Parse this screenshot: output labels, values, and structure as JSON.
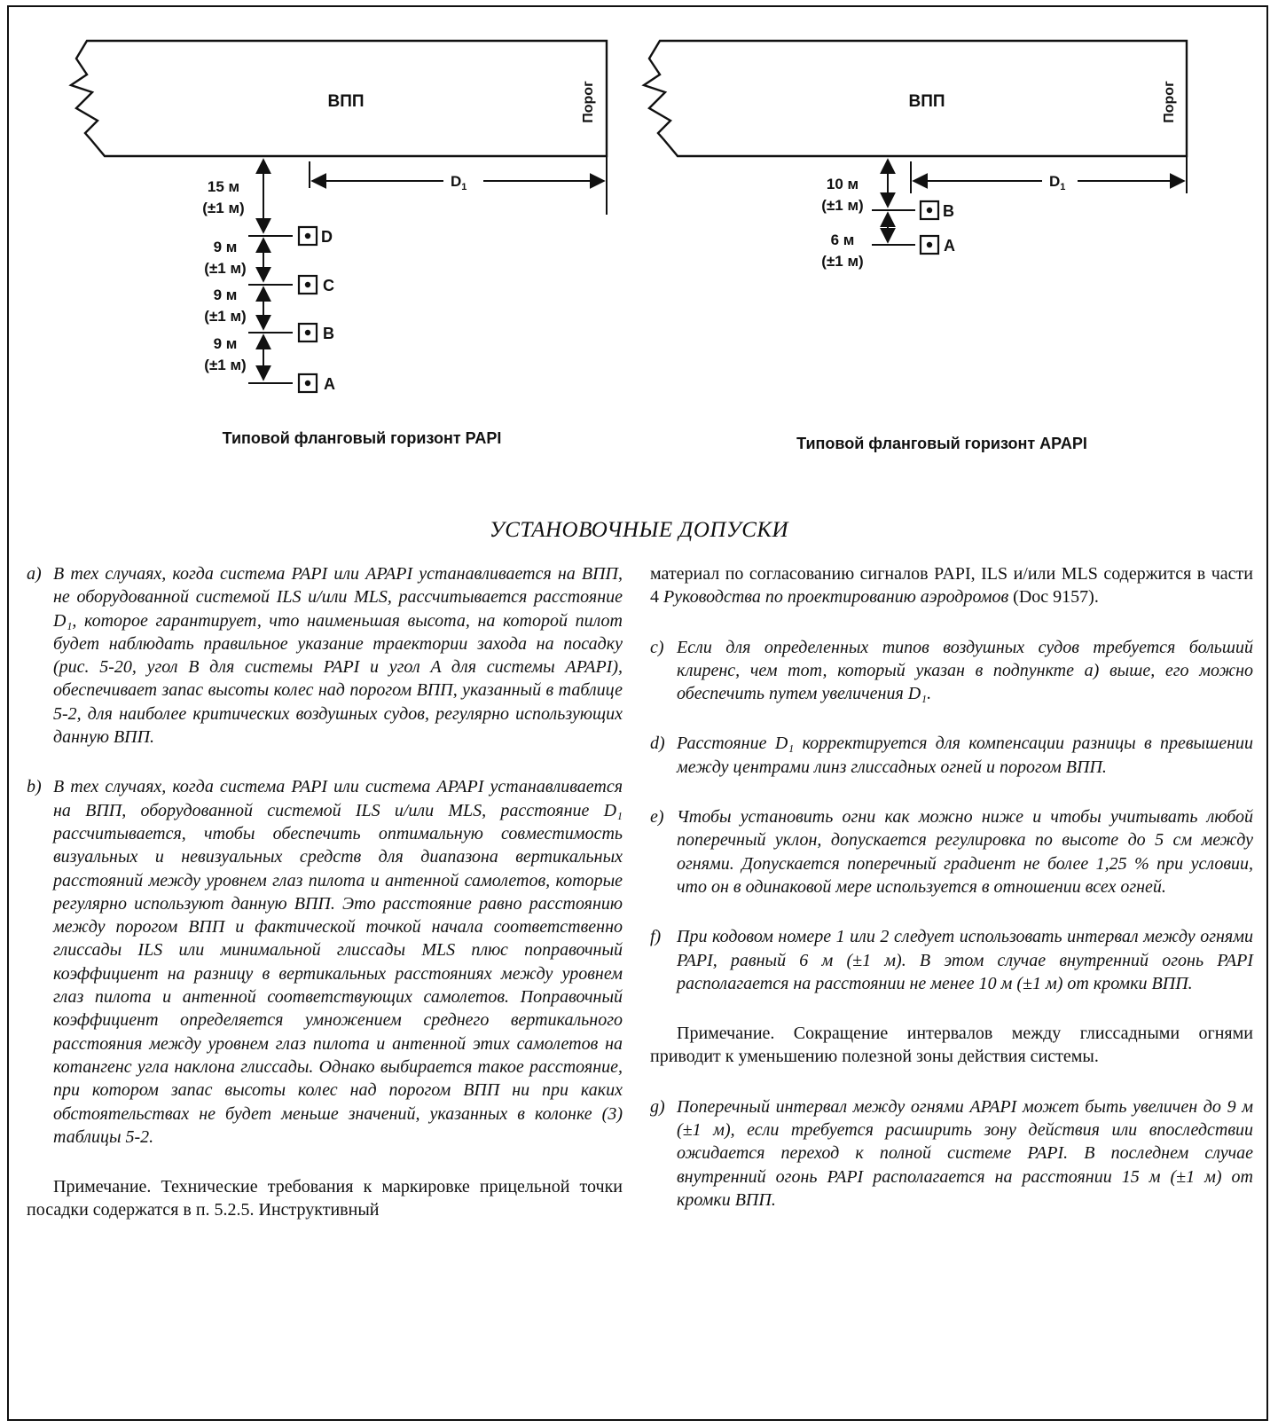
{
  "figure": {
    "papi": {
      "runway_label": "ВПП",
      "threshold_label": "Порог",
      "distance_label": "D",
      "distance_sub": "1",
      "spacings": [
        {
          "value": "15 м",
          "tol": "(±1 м)"
        },
        {
          "value": "9 м",
          "tol": "(±1 м)"
        },
        {
          "value": "9 м",
          "tol": "(±1 м)"
        },
        {
          "value": "9 м",
          "tol": "(±1 м)"
        }
      ],
      "lights": [
        "D",
        "C",
        "B",
        "A"
      ],
      "caption": "Типовой фланговый горизонт PAPI"
    },
    "apapi": {
      "runway_label": "ВПП",
      "threshold_label": "Порог",
      "distance_label": "D",
      "distance_sub": "1",
      "spacings": [
        {
          "value": "10 м",
          "tol": "(±1 м)"
        },
        {
          "value": "6 м",
          "tol": "(±1 м)"
        }
      ],
      "lights": [
        "B",
        "A"
      ],
      "caption": "Типовой фланговый горизонт APAPI"
    }
  },
  "heading": "УСТАНОВОЧНЫЕ ДОПУСКИ",
  "left_column": {
    "item_a": {
      "marker": "a)",
      "text": "В тех случаях, когда система PAPI или APAPI устанавливается на ВПП, не оборудованной системой ILS и/или MLS, рассчитывается расстояние D₁, которое гарантирует, что наименьшая высота, на которой пилот будет наблюдать правильное указание траектории захода на посадку (рис. 5-20, угол B для системы PAPI и угол A для системы APAPI), обеспечивает запас высоты колес над порогом ВПП, указанный в таблице 5-2, для наиболее критических воздушных судов, регулярно использующих данную ВПП."
    },
    "item_b": {
      "marker": "b)",
      "text": "В тех случаях, когда система PAPI или система APAPI устанавливается на ВПП, оборудованной системой ILS и/или MLS, расстояние D₁ рассчитывается, чтобы обеспечить оптимальную совместимость визуальных и невизуальных средств для диапазона вертикальных расстояний между уровнем глаз пилота и антенной самолетов, которые регулярно используют данную ВПП. Это расстояние равно расстоянию между порогом ВПП и фактической точкой начала соответственно глиссады ILS или минимальной глиссады MLS плюс поправочный коэффициент на разницу в вертикальных расстояниях между уровнем глаз пилота и антенной соответствующих самолетов. Поправочный коэффициент определяется умножением среднего вертикального расстояния между уровнем глаз пилота и антенной этих самолетов на котангенс угла наклона глиссады. Однако выбирается такое расстояние, при котором запас высоты колес над порогом ВПП ни при каких обстоятельствах не будет меньше значений, указанных в колонке (3) таблицы 5-2."
    },
    "note": "Примечание. Технические требования к маркировке прицельной точки посадки содержатся в п. 5.2.5. Инструктивный"
  },
  "right_column": {
    "continuation": {
      "pre": "материал по согласованию сигналов PAPI, ILS и/или MLS содержится в части 4 ",
      "ital": "Руководства по проектированию аэродромов",
      "post": " (Doc 9157)."
    },
    "item_c": {
      "marker": "c)",
      "text": "Если для определенных типов воздушных судов требуется больший клиренс, чем тот, который указан в подпункте а) выше, его можно обеспечить путем увеличения D₁."
    },
    "item_d": {
      "marker": "d)",
      "text": "Расстояние D₁ корректируется для компенсации разницы в превышении между центрами линз глиссадных огней и порогом ВПП."
    },
    "item_e": {
      "marker": "e)",
      "text": "Чтобы установить огни как можно ниже и чтобы учитывать любой поперечный уклон, допускается регулировка по высоте до 5 см между огнями. Допускается поперечный градиент не более 1,25 % при условии, что он в одинаковой мере используется в отношении всех огней."
    },
    "item_f": {
      "marker": "f)",
      "text": "При кодовом номере 1 или 2 следует использовать интервал между огнями PAPI, равный 6 м (±1 м). В этом случае внутренний огонь PAPI располагается на расстоянии не менее 10 м (±1 м) от кромки ВПП."
    },
    "note": "Примечание. Сокращение интервалов между глиссадными огнями приводит к уменьшению полезной зоны действия системы.",
    "item_g": {
      "marker": "g)",
      "text": "Поперечный интервал между огнями APAPI может быть увеличен до 9 м (±1 м), если требуется расширить зону действия или впоследствии ожидается переход к полной системе PAPI. В последнем случае внутренний огонь PAPI располагается на расстоянии 15 м (±1 м) от кромки ВПП."
    }
  }
}
